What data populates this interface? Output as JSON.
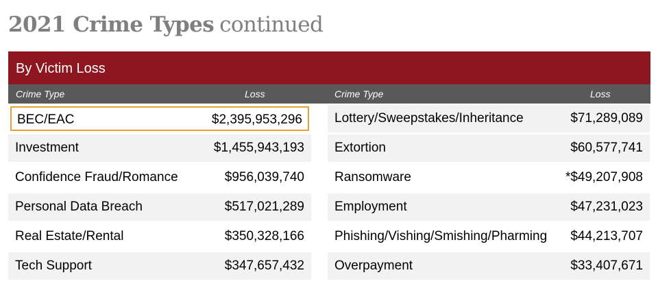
{
  "title": {
    "main": "2021 Crime Types",
    "sub": "continued"
  },
  "section": {
    "heading": "By Victim Loss",
    "columns": {
      "left_type": "Crime Type",
      "left_loss": "Loss",
      "right_type": "Crime Type",
      "right_loss": "Loss"
    }
  },
  "colors": {
    "header_bg": "#8e1620",
    "subheader_bg": "#595959",
    "row_shade": "#f2f2f2",
    "highlight_border": "#e8a030",
    "title_gray": "#7f7f7f"
  },
  "left_rows": [
    {
      "name": "BEC/EAC",
      "loss": "$2,395,953,296",
      "highlighted": true
    },
    {
      "name": "Investment",
      "loss": "$1,455,943,193"
    },
    {
      "name": "Confidence Fraud/Romance",
      "loss": "$956,039,740"
    },
    {
      "name": "Personal Data Breach",
      "loss": "$517,021,289"
    },
    {
      "name": "Real Estate/Rental",
      "loss": "$350,328,166"
    },
    {
      "name": "Tech Support",
      "loss": "$347,657,432"
    }
  ],
  "right_rows": [
    {
      "name": "Lottery/Sweepstakes/Inheritance",
      "loss": "$71,289,089"
    },
    {
      "name": "Extortion",
      "loss": "$60,577,741"
    },
    {
      "name": "Ransomware",
      "loss": "*$49,207,908"
    },
    {
      "name": "Employment",
      "loss": "$47,231,023"
    },
    {
      "name": "Phishing/Vishing/Smishing/Pharming",
      "loss": "$44,213,707"
    },
    {
      "name": "Overpayment",
      "loss": "$33,407,671"
    }
  ]
}
